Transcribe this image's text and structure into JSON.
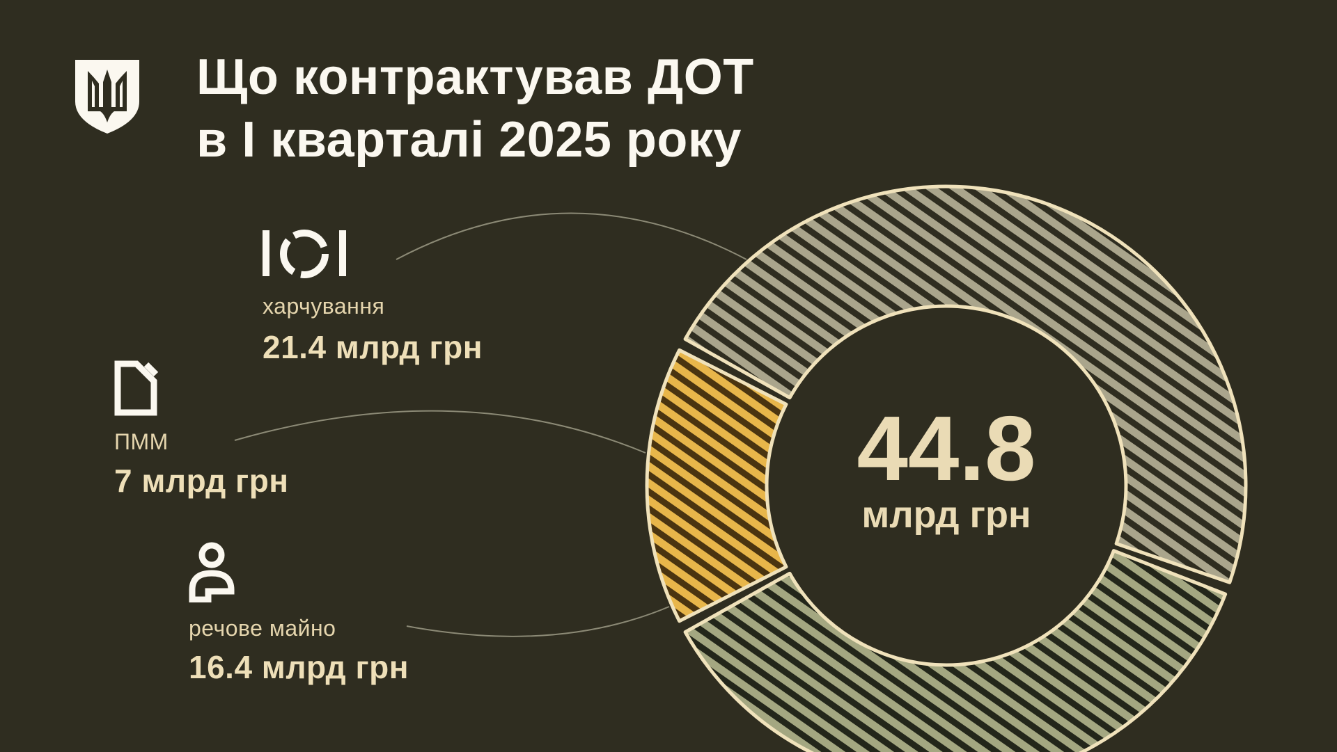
{
  "title": {
    "line1": "Що контрактував ДОТ",
    "line2": "в І кварталі 2025 року"
  },
  "logo": "trident-shield-emblem",
  "colors": {
    "background": "#2f2d20",
    "outline": "#f0e2bb",
    "food": "#aaa58c",
    "fuel": "#e8b64a",
    "clothing": "#a4a781",
    "stripe": "#2f2d20"
  },
  "chart_data": {
    "type": "pie",
    "variant": "donut",
    "total": {
      "value": "44.8",
      "unit": "млрд грн"
    },
    "slices": [
      {
        "label": "харчування",
        "value": 21.4,
        "display": "21.4 млрд грн",
        "icon": "food-plate-icon",
        "color": "#aaa58c"
      },
      {
        "label": "ПММ",
        "value": 7,
        "display": "7 млрд грн",
        "icon": "fuel-canister-icon",
        "color": "#e8b64a"
      },
      {
        "label": "речове майно",
        "value": 16.4,
        "display": "16.4 млрд грн",
        "icon": "person-icon",
        "color": "#a4a781"
      }
    ]
  }
}
